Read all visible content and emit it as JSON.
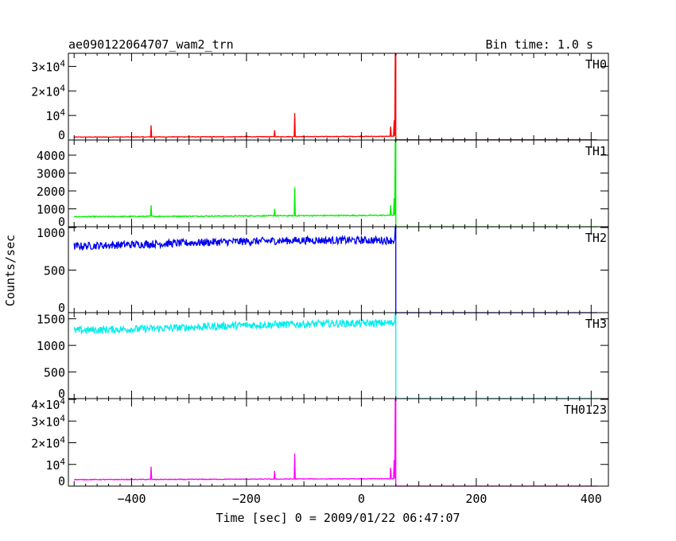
{
  "header": {
    "title": "ae090122064707_wam2_trn",
    "bin_time": "Bin time: 1.0 s"
  },
  "axes": {
    "xlabel": "Time [sec] 0 = 2009/01/22 06:47:07",
    "ylabel": "Counts/sec",
    "x_tick_labels": [
      "−400",
      "−200",
      "0",
      "200",
      "400"
    ]
  },
  "chart_data": {
    "type": "line",
    "title": "ae090122064707_wam2_trn",
    "xlabel": "Time [sec] 0 = 2009/01/22 06:47:07",
    "ylabel": "Counts/sec",
    "xlim": [
      -510,
      430
    ],
    "x_ticks": [
      -400,
      -200,
      0,
      200,
      400
    ],
    "grid": false,
    "panels": [
      {
        "name": "TH0",
        "color": "#ff0000",
        "ylim": [
          0,
          35000
        ],
        "y_ticks": [
          0,
          10000,
          20000,
          30000
        ],
        "y_tick_labels": [
          "0",
          "10^4",
          "2×10^4",
          "3×10^4"
        ],
        "baseline_points": [
          [
            -500,
            1200
          ],
          [
            -300,
            1300
          ],
          [
            -100,
            1400
          ],
          [
            55,
            1500
          ]
        ],
        "noise": 120,
        "spikes": [
          [
            -366,
            6000
          ],
          [
            -200,
            1900
          ],
          [
            -151,
            4000
          ],
          [
            -116,
            11000
          ],
          [
            0,
            1900
          ],
          [
            51,
            5500
          ],
          [
            57,
            8000
          ],
          [
            59,
            35000
          ]
        ],
        "cutoff_x": 60,
        "after_level": 100
      },
      {
        "name": "TH1",
        "color": "#00ee00",
        "ylim": [
          0,
          4800
        ],
        "y_ticks": [
          0,
          1000,
          2000,
          3000,
          4000
        ],
        "y_tick_labels": [
          "0",
          "1000",
          "2000",
          "3000",
          "4000"
        ],
        "baseline_points": [
          [
            -500,
            560
          ],
          [
            -300,
            590
          ],
          [
            -100,
            620
          ],
          [
            55,
            640
          ]
        ],
        "noise": 30,
        "spikes": [
          [
            -366,
            1200
          ],
          [
            -151,
            1000
          ],
          [
            -116,
            2200
          ],
          [
            51,
            1200
          ],
          [
            57,
            1600
          ],
          [
            59,
            4800
          ]
        ],
        "cutoff_x": 60,
        "after_level": 0
      },
      {
        "name": "TH2",
        "color": "#0000ee",
        "ylim": [
          0,
          1000
        ],
        "y_ticks": [
          0,
          500,
          1000
        ],
        "y_tick_labels": [
          "0",
          "500",
          "1000"
        ],
        "baseline_points": [
          [
            -500,
            780
          ],
          [
            -400,
            800
          ],
          [
            -250,
            830
          ],
          [
            -100,
            850
          ],
          [
            55,
            850
          ]
        ],
        "noise": 45,
        "spikes": [
          [
            59,
            1000
          ]
        ],
        "cutoff_x": 60,
        "after_level": 0
      },
      {
        "name": "TH3",
        "color": "#00eeee",
        "ylim": [
          0,
          1600
        ],
        "y_ticks": [
          0,
          500,
          1000,
          1500
        ],
        "y_tick_labels": [
          "0",
          "500",
          "1000",
          "1500"
        ],
        "baseline_points": [
          [
            -500,
            1280
          ],
          [
            -350,
            1320
          ],
          [
            -200,
            1380
          ],
          [
            -50,
            1410
          ],
          [
            55,
            1420
          ]
        ],
        "noise": 70,
        "spikes": [
          [
            59,
            1600
          ]
        ],
        "cutoff_x": 60,
        "after_level": 0
      },
      {
        "name": "TH0123",
        "color": "#ff00ff",
        "ylim": [
          0,
          40000
        ],
        "y_ticks": [
          0,
          10000,
          20000,
          30000,
          40000
        ],
        "y_tick_labels": [
          "0",
          "10^4",
          "2×10^4",
          "3×10^4",
          "4×10^4"
        ],
        "baseline_points": [
          [
            -500,
            3000
          ],
          [
            -300,
            3100
          ],
          [
            -100,
            3300
          ],
          [
            55,
            3400
          ]
        ],
        "noise": 150,
        "spikes": [
          [
            -366,
            9000
          ],
          [
            -151,
            7000
          ],
          [
            -116,
            15000
          ],
          [
            51,
            8500
          ],
          [
            57,
            12000
          ],
          [
            59,
            40000
          ]
        ],
        "cutoff_x": 60,
        "after_level": 0
      }
    ]
  }
}
